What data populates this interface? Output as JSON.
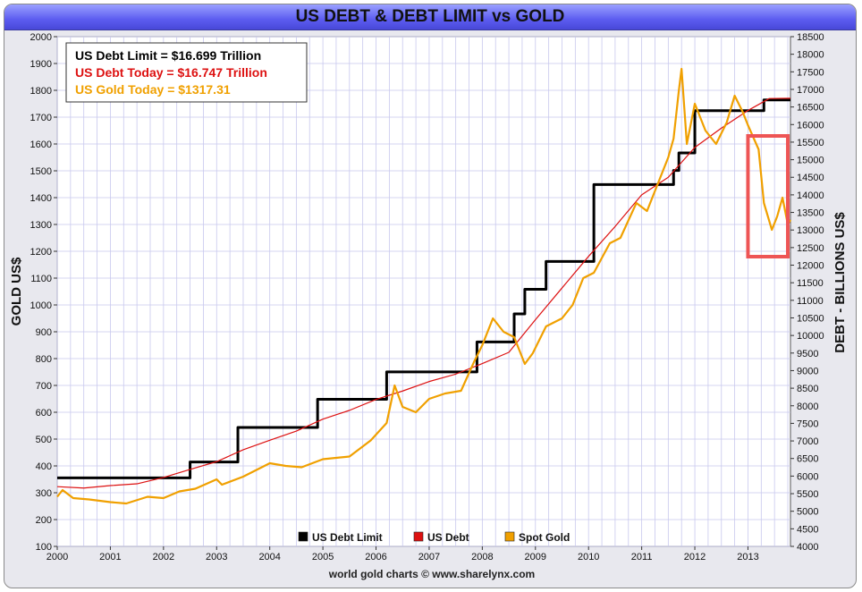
{
  "title": "US DEBT & DEBT LIMIT vs GOLD",
  "credit": "world gold charts © www.sharelynx.com",
  "info_box": {
    "line1": "US Debt Limit    = $16.699 Trillion",
    "line2": "US Debt Today = $16.747 Trillion",
    "line3": "US Gold Today = $1317.31"
  },
  "colors": {
    "debt_limit": "#000000",
    "debt": "#dd1111",
    "gold": "#f0a000",
    "highlight": "#ee5555",
    "grid": "#c8c8ee",
    "title_bar": "#5c5cf0"
  },
  "chart_data": {
    "type": "line",
    "title": "US DEBT & DEBT LIMIT vs GOLD",
    "xlabel": "",
    "ylabel_left": "GOLD US$",
    "ylabel_right": "DEBT - BILLIONS US$",
    "xlim": [
      2000,
      2013.8
    ],
    "ylim_left": [
      100,
      2000
    ],
    "ylim_right": [
      4000,
      18500
    ],
    "x_ticks": [
      "2000",
      "2001",
      "2002",
      "2003",
      "2004",
      "2005",
      "2006",
      "2007",
      "2008",
      "2009",
      "2010",
      "2011",
      "2012",
      "2013"
    ],
    "y_ticks_left": [
      "100",
      "200",
      "300",
      "400",
      "500",
      "600",
      "700",
      "800",
      "900",
      "1000",
      "1100",
      "1200",
      "1300",
      "1400",
      "1500",
      "1600",
      "1700",
      "1800",
      "1900",
      "2000"
    ],
    "y_ticks_right": [
      "4000",
      "4500",
      "5000",
      "5500",
      "6000",
      "6500",
      "7000",
      "7500",
      "8000",
      "8500",
      "9000",
      "9500",
      "10000",
      "10500",
      "11000",
      "11500",
      "12000",
      "12500",
      "13000",
      "13500",
      "14000",
      "14500",
      "15000",
      "15500",
      "16000",
      "16500",
      "17000",
      "17500",
      "18000",
      "18500"
    ],
    "grid": true,
    "legend_position": "bottom-center",
    "legend": [
      "US Debt Limit",
      "US Debt",
      "Spot Gold"
    ],
    "series": [
      {
        "name": "US Debt Limit",
        "axis": "right",
        "step": true,
        "x": [
          2000,
          2002.5,
          2003.4,
          2004.9,
          2006.2,
          2007.9,
          2008.6,
          2008.8,
          2009.2,
          2010.1,
          2011.6,
          2011.7,
          2012.0,
          2013.3,
          2013.8
        ],
        "values": [
          5950,
          6400,
          7384,
          8184,
          8965,
          9815,
          10615,
          11315,
          12104,
          14294,
          14694,
          15194,
          16394,
          16699,
          16699
        ]
      },
      {
        "name": "US Debt",
        "axis": "right",
        "x": [
          2000,
          2000.5,
          2001,
          2001.5,
          2002,
          2002.5,
          2003,
          2003.5,
          2004,
          2004.5,
          2005,
          2005.5,
          2006,
          2006.5,
          2007,
          2007.5,
          2008,
          2008.5,
          2009,
          2009.5,
          2010,
          2010.5,
          2011,
          2011.5,
          2012,
          2012.5,
          2013,
          2013.4,
          2013.8
        ],
        "values": [
          5700,
          5660,
          5730,
          5780,
          5960,
          6190,
          6410,
          6750,
          7020,
          7280,
          7620,
          7870,
          8180,
          8420,
          8690,
          8900,
          9200,
          9520,
          10450,
          11350,
          12250,
          13100,
          14000,
          14500,
          15350,
          15900,
          16400,
          16740,
          16747
        ]
      },
      {
        "name": "Spot Gold",
        "axis": "left",
        "x": [
          2000,
          2000.1,
          2000.3,
          2000.6,
          2001,
          2001.3,
          2001.7,
          2002,
          2002.3,
          2002.6,
          2003,
          2003.1,
          2003.5,
          2004,
          2004.3,
          2004.6,
          2005,
          2005.5,
          2005.9,
          2006.2,
          2006.35,
          2006.5,
          2006.75,
          2007,
          2007.3,
          2007.6,
          2007.85,
          2008,
          2008.2,
          2008.4,
          2008.6,
          2008.8,
          2008.95,
          2009.2,
          2009.5,
          2009.7,
          2009.9,
          2010.1,
          2010.4,
          2010.6,
          2010.9,
          2011.1,
          2011.3,
          2011.5,
          2011.6,
          2011.7,
          2011.75,
          2011.85,
          2012,
          2012.2,
          2012.4,
          2012.6,
          2012.75,
          2012.9,
          2013,
          2013.2,
          2013.3,
          2013.45,
          2013.55,
          2013.65,
          2013.75,
          2013.8
        ],
        "values": [
          285,
          310,
          280,
          275,
          265,
          260,
          285,
          280,
          305,
          315,
          350,
          330,
          360,
          410,
          400,
          395,
          425,
          435,
          495,
          560,
          700,
          620,
          600,
          650,
          670,
          680,
          790,
          850,
          950,
          900,
          880,
          780,
          820,
          920,
          950,
          1000,
          1100,
          1120,
          1230,
          1250,
          1380,
          1350,
          1450,
          1550,
          1620,
          1800,
          1880,
          1600,
          1750,
          1650,
          1600,
          1680,
          1780,
          1720,
          1670,
          1580,
          1380,
          1280,
          1330,
          1400,
          1300,
          1317
        ]
      }
    ],
    "annotations": [
      {
        "type": "rectangle",
        "x": [
          2013.0,
          2013.75
        ],
        "y_left": [
          1180,
          1630
        ]
      }
    ]
  }
}
